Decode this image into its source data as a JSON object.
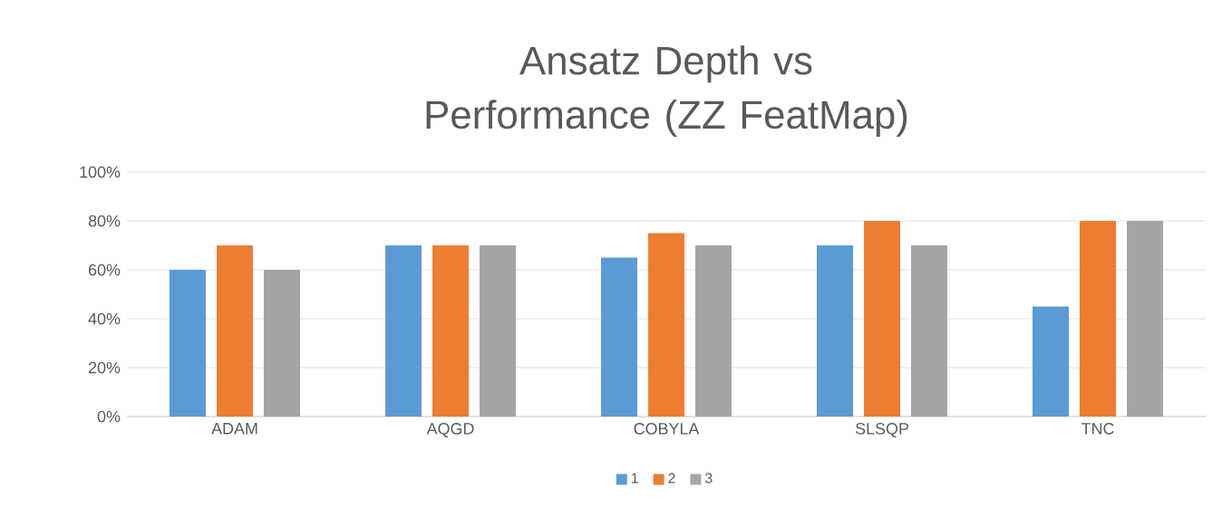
{
  "chart_data": {
    "type": "bar",
    "title": "Ansatz Depth vs Performance (ZZ FeatMap)",
    "categories": [
      "ADAM",
      "AQGD",
      "COBYLA",
      "SLSQP",
      "TNC"
    ],
    "series": [
      {
        "name": "1",
        "color": "#5b9bd5",
        "values": [
          60,
          70,
          65,
          70,
          45
        ]
      },
      {
        "name": "2",
        "color": "#ed7d31",
        "values": [
          70,
          70,
          75,
          80,
          80
        ]
      },
      {
        "name": "3",
        "color": "#a5a5a5",
        "values": [
          60,
          70,
          70,
          70,
          80
        ]
      }
    ],
    "ylim": [
      0,
      100
    ],
    "yticks": [
      {
        "value": 0,
        "label": "0%"
      },
      {
        "value": 20,
        "label": "20%"
      },
      {
        "value": 40,
        "label": "40%"
      },
      {
        "value": 60,
        "label": "60%"
      },
      {
        "value": 80,
        "label": "80%"
      },
      {
        "value": 100,
        "label": "100%"
      }
    ],
    "grid": "y",
    "legend": "bottom"
  }
}
